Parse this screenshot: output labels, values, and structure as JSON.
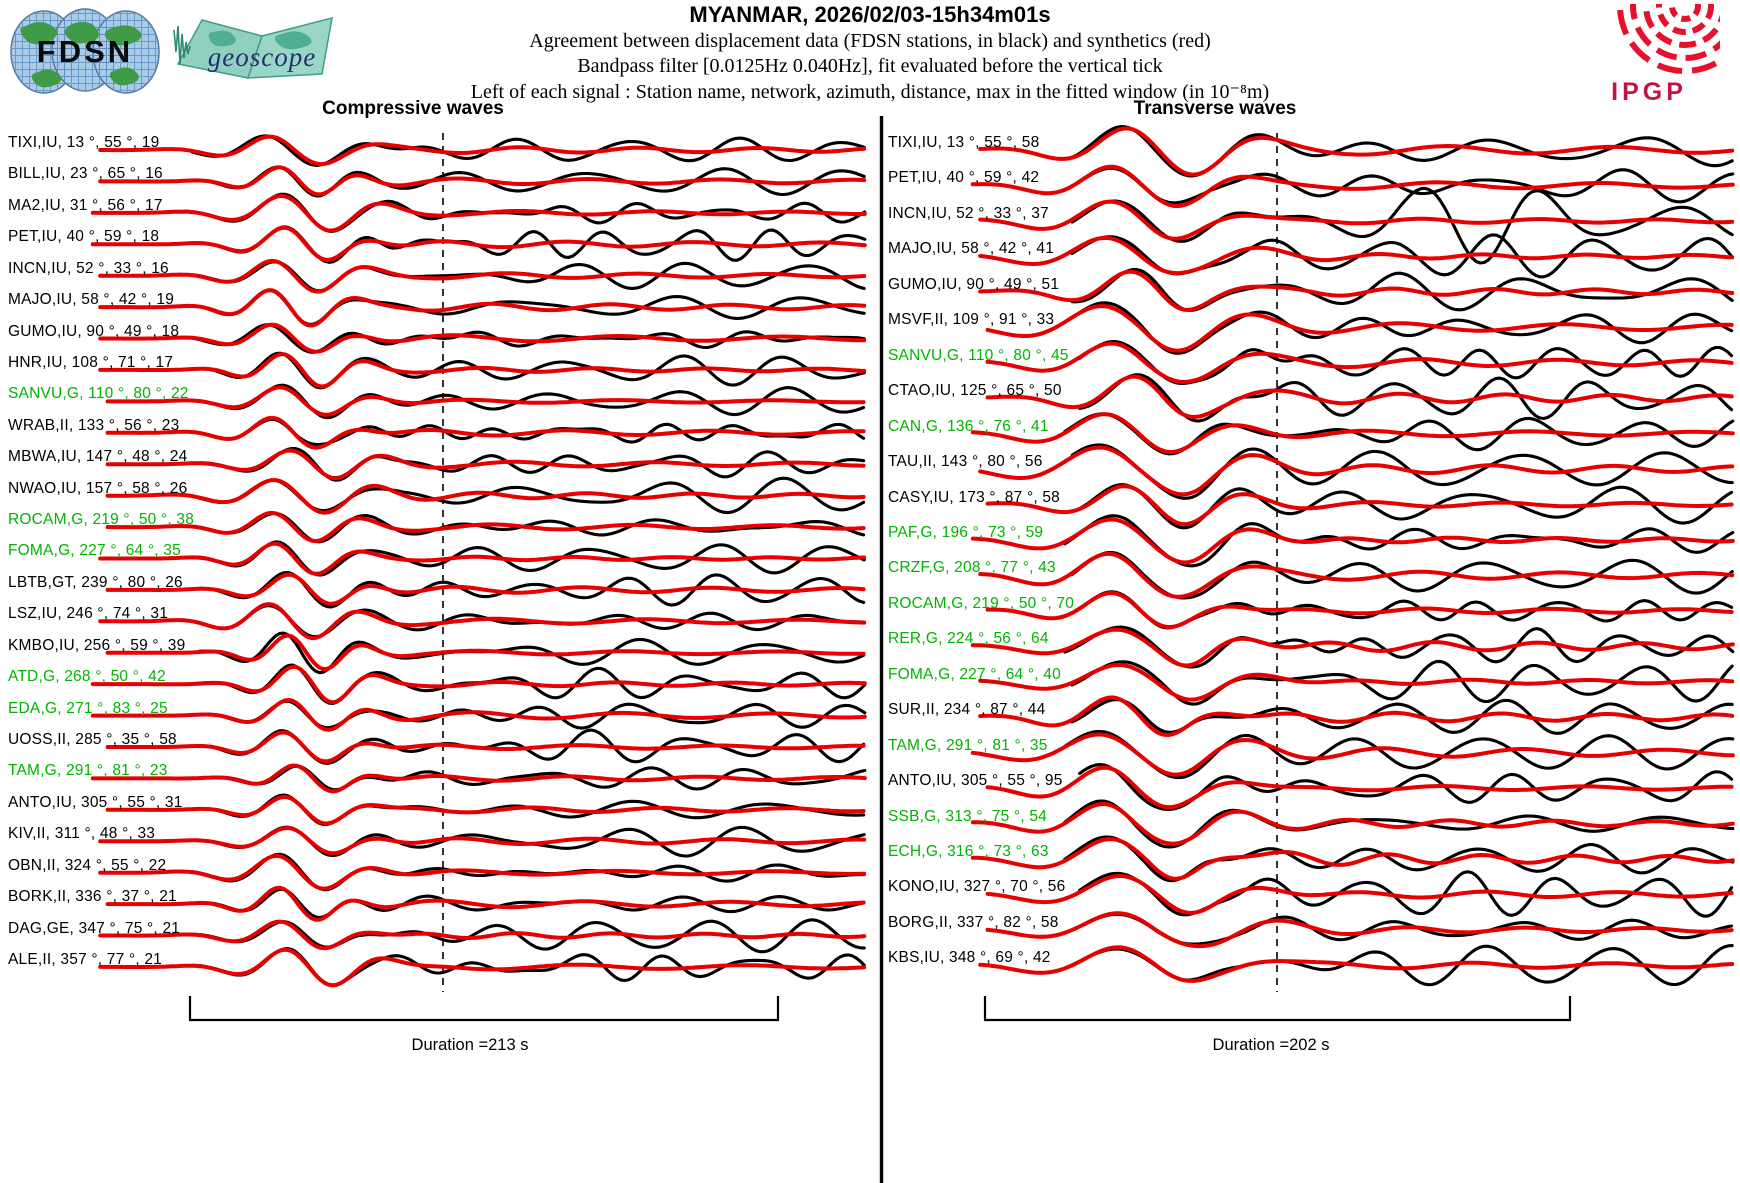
{
  "header": {
    "title": "MYANMAR, 2026/02/03-15h34m01s",
    "line1": "Agreement between displacement data (FDSN stations, in black) and synthetics (red)",
    "line2": "Bandpass filter [0.0125Hz 0.040Hz], fit evaluated before the vertical tick",
    "line3": "Left of each signal : Station name, network, azimuth, distance, max in the fitted window (in 10⁻⁸m)"
  },
  "logos": {
    "fdsn_text": "FDSN",
    "geoscope_text": "geoscope",
    "ipgp_text": "IPGP"
  },
  "chart_data": {
    "type": "line",
    "title": "MYANMAR, 2026/02/03-15h34m01s",
    "legend": {
      "data_trace": "displacement data (FDSN stations, in black)",
      "synthetic_trace": "synthetics (red)"
    },
    "colors": {
      "data": "#000000",
      "synthetic": "#e60000",
      "green_station_label": "#00b400"
    },
    "label_format": "Station name, network, azimuth °, distance °, max in fitted window (1e-8 m)",
    "waveforms_note": "trace sample values not readable from figure; traces are normalized seismograms, fit window ends at dashed vertical tick",
    "panels": [
      {
        "title": "Compressive waves",
        "duration": "Duration =213 s",
        "stations": [
          {
            "label": "TIXI,IU, 13 °, 55 °, 19",
            "code": "TIXI",
            "net": "IU",
            "az": 13,
            "dist": 55,
            "max": 19,
            "green": false
          },
          {
            "label": "BILL,IU, 23 °, 65 °, 16",
            "code": "BILL",
            "net": "IU",
            "az": 23,
            "dist": 65,
            "max": 16,
            "green": false
          },
          {
            "label": "MA2,IU, 31 °, 56 °, 17",
            "code": "MA2",
            "net": "IU",
            "az": 31,
            "dist": 56,
            "max": 17,
            "green": false
          },
          {
            "label": "PET,IU, 40 °, 59 °, 18",
            "code": "PET",
            "net": "IU",
            "az": 40,
            "dist": 59,
            "max": 18,
            "green": false
          },
          {
            "label": "INCN,IU, 52 °, 33 °, 16",
            "code": "INCN",
            "net": "IU",
            "az": 52,
            "dist": 33,
            "max": 16,
            "green": false
          },
          {
            "label": "MAJO,IU, 58 °, 42 °, 19",
            "code": "MAJO",
            "net": "IU",
            "az": 58,
            "dist": 42,
            "max": 19,
            "green": false
          },
          {
            "label": "GUMO,IU, 90 °, 49 °, 18",
            "code": "GUMO",
            "net": "IU",
            "az": 90,
            "dist": 49,
            "max": 18,
            "green": false
          },
          {
            "label": "HNR,IU, 108 °, 71 °, 17",
            "code": "HNR",
            "net": "IU",
            "az": 108,
            "dist": 71,
            "max": 17,
            "green": false
          },
          {
            "label": "SANVU,G, 110 °, 80 °, 22",
            "code": "SANVU",
            "net": "G",
            "az": 110,
            "dist": 80,
            "max": 22,
            "green": true
          },
          {
            "label": "WRAB,II, 133 °, 56 °, 23",
            "code": "WRAB",
            "net": "II",
            "az": 133,
            "dist": 56,
            "max": 23,
            "green": false
          },
          {
            "label": "MBWA,IU, 147 °, 48 °, 24",
            "code": "MBWA",
            "net": "IU",
            "az": 147,
            "dist": 48,
            "max": 24,
            "green": false
          },
          {
            "label": "NWAO,IU, 157 °, 58 °, 26",
            "code": "NWAO",
            "net": "IU",
            "az": 157,
            "dist": 58,
            "max": 26,
            "green": false
          },
          {
            "label": "ROCAM,G, 219 °, 50 °, 38",
            "code": "ROCAM",
            "net": "G",
            "az": 219,
            "dist": 50,
            "max": 38,
            "green": true
          },
          {
            "label": "FOMA,G, 227 °, 64 °, 35",
            "code": "FOMA",
            "net": "G",
            "az": 227,
            "dist": 64,
            "max": 35,
            "green": true
          },
          {
            "label": "LBTB,GT, 239 °, 80 °, 26",
            "code": "LBTB",
            "net": "GT",
            "az": 239,
            "dist": 80,
            "max": 26,
            "green": false
          },
          {
            "label": "LSZ,IU, 246 °, 74 °, 31",
            "code": "LSZ",
            "net": "IU",
            "az": 246,
            "dist": 74,
            "max": 31,
            "green": false
          },
          {
            "label": "KMBO,IU, 256 °, 59 °, 39",
            "code": "KMBO",
            "net": "IU",
            "az": 256,
            "dist": 59,
            "max": 39,
            "green": false
          },
          {
            "label": "ATD,G, 268 °, 50 °, 42",
            "code": "ATD",
            "net": "G",
            "az": 268,
            "dist": 50,
            "max": 42,
            "green": true
          },
          {
            "label": "EDA,G, 271 °, 83 °, 25",
            "code": "EDA",
            "net": "G",
            "az": 271,
            "dist": 83,
            "max": 25,
            "green": true
          },
          {
            "label": "UOSS,II, 285 °, 35 °, 58",
            "code": "UOSS",
            "net": "II",
            "az": 285,
            "dist": 35,
            "max": 58,
            "green": false
          },
          {
            "label": "TAM,G, 291 °, 81 °, 23",
            "code": "TAM",
            "net": "G",
            "az": 291,
            "dist": 81,
            "max": 23,
            "green": true
          },
          {
            "label": "ANTO,IU, 305 °, 55 °, 31",
            "code": "ANTO",
            "net": "IU",
            "az": 305,
            "dist": 55,
            "max": 31,
            "green": false
          },
          {
            "label": "KIV,II, 311 °, 48 °, 33",
            "code": "KIV",
            "net": "II",
            "az": 311,
            "dist": 48,
            "max": 33,
            "green": false
          },
          {
            "label": "OBN,II, 324 °, 55 °, 22",
            "code": "OBN",
            "net": "II",
            "az": 324,
            "dist": 55,
            "max": 22,
            "green": false
          },
          {
            "label": "BORK,II, 336 °, 37 °, 21",
            "code": "BORK",
            "net": "II",
            "az": 336,
            "dist": 37,
            "max": 21,
            "green": false
          },
          {
            "label": "DAG,GE, 347 °, 75 °, 21",
            "code": "DAG",
            "net": "GE",
            "az": 347,
            "dist": 75,
            "max": 21,
            "green": false
          },
          {
            "label": "ALE,II, 357 °, 77 °, 21",
            "code": "ALE",
            "net": "II",
            "az": 357,
            "dist": 77,
            "max": 21,
            "green": false
          }
        ]
      },
      {
        "title": "Transverse waves",
        "duration": "Duration =202 s",
        "stations": [
          {
            "label": "TIXI,IU, 13 °, 55 °, 58",
            "code": "TIXI",
            "net": "IU",
            "az": 13,
            "dist": 55,
            "max": 58,
            "green": false
          },
          {
            "label": "PET,IU, 40 °, 59 °, 42",
            "code": "PET",
            "net": "IU",
            "az": 40,
            "dist": 59,
            "max": 42,
            "green": false
          },
          {
            "label": "INCN,IU, 52 °, 33 °, 37",
            "code": "INCN",
            "net": "IU",
            "az": 52,
            "dist": 33,
            "max": 37,
            "green": false
          },
          {
            "label": "MAJO,IU, 58 °, 42 °, 41",
            "code": "MAJO",
            "net": "IU",
            "az": 58,
            "dist": 42,
            "max": 41,
            "green": false
          },
          {
            "label": "GUMO,IU, 90 °, 49 °, 51",
            "code": "GUMO",
            "net": "IU",
            "az": 90,
            "dist": 49,
            "max": 51,
            "green": false
          },
          {
            "label": "MSVF,II, 109 °, 91 °, 33",
            "code": "MSVF",
            "net": "II",
            "az": 109,
            "dist": 91,
            "max": 33,
            "green": false
          },
          {
            "label": "SANVU,G, 110 °, 80 °, 45",
            "code": "SANVU",
            "net": "G",
            "az": 110,
            "dist": 80,
            "max": 45,
            "green": true
          },
          {
            "label": "CTAO,IU, 125 °, 65 °, 50",
            "code": "CTAO",
            "net": "IU",
            "az": 125,
            "dist": 65,
            "max": 50,
            "green": false
          },
          {
            "label": "CAN,G, 136 °, 76 °, 41",
            "code": "CAN",
            "net": "G",
            "az": 136,
            "dist": 76,
            "max": 41,
            "green": true
          },
          {
            "label": "TAU,II, 143 °, 80 °, 56",
            "code": "TAU",
            "net": "II",
            "az": 143,
            "dist": 80,
            "max": 56,
            "green": false
          },
          {
            "label": "CASY,IU, 173 °, 87 °, 58",
            "code": "CASY",
            "net": "IU",
            "az": 173,
            "dist": 87,
            "max": 58,
            "green": false
          },
          {
            "label": "PAF,G, 196 °, 73 °, 59",
            "code": "PAF",
            "net": "G",
            "az": 196,
            "dist": 73,
            "max": 59,
            "green": true
          },
          {
            "label": "CRZF,G, 208 °, 77 °, 43",
            "code": "CRZF",
            "net": "G",
            "az": 208,
            "dist": 77,
            "max": 43,
            "green": true
          },
          {
            "label": "ROCAM,G, 219 °, 50 °, 70",
            "code": "ROCAM",
            "net": "G",
            "az": 219,
            "dist": 50,
            "max": 70,
            "green": true
          },
          {
            "label": "RER,G, 224 °, 56 °, 64",
            "code": "RER",
            "net": "G",
            "az": 224,
            "dist": 56,
            "max": 64,
            "green": true
          },
          {
            "label": "FOMA,G, 227 °, 64 °, 40",
            "code": "FOMA",
            "net": "G",
            "az": 227,
            "dist": 64,
            "max": 40,
            "green": true
          },
          {
            "label": "SUR,II, 234 °, 87 °, 44",
            "code": "SUR",
            "net": "II",
            "az": 234,
            "dist": 87,
            "max": 44,
            "green": false
          },
          {
            "label": "TAM,G, 291 °, 81 °, 35",
            "code": "TAM",
            "net": "G",
            "az": 291,
            "dist": 81,
            "max": 35,
            "green": true
          },
          {
            "label": "ANTO,IU, 305 °, 55 °, 95",
            "code": "ANTO",
            "net": "IU",
            "az": 305,
            "dist": 55,
            "max": 95,
            "green": false
          },
          {
            "label": "SSB,G, 313 °, 75 °, 54",
            "code": "SSB",
            "net": "G",
            "az": 313,
            "dist": 75,
            "max": 54,
            "green": true
          },
          {
            "label": "ECH,G, 316 °, 73 °, 63",
            "code": "ECH",
            "net": "G",
            "az": 316,
            "dist": 73,
            "max": 63,
            "green": true
          },
          {
            "label": "KONO,IU, 327 °, 70 °, 56",
            "code": "KONO",
            "net": "IU",
            "az": 327,
            "dist": 70,
            "max": 56,
            "green": false
          },
          {
            "label": "BORG,II, 337 °, 82 °, 58",
            "code": "BORG",
            "net": "II",
            "az": 337,
            "dist": 82,
            "max": 58,
            "green": false
          },
          {
            "label": "KBS,IU, 348 °, 69 °, 42",
            "code": "KBS",
            "net": "IU",
            "az": 348,
            "dist": 69,
            "max": 42,
            "green": false
          }
        ]
      }
    ]
  }
}
